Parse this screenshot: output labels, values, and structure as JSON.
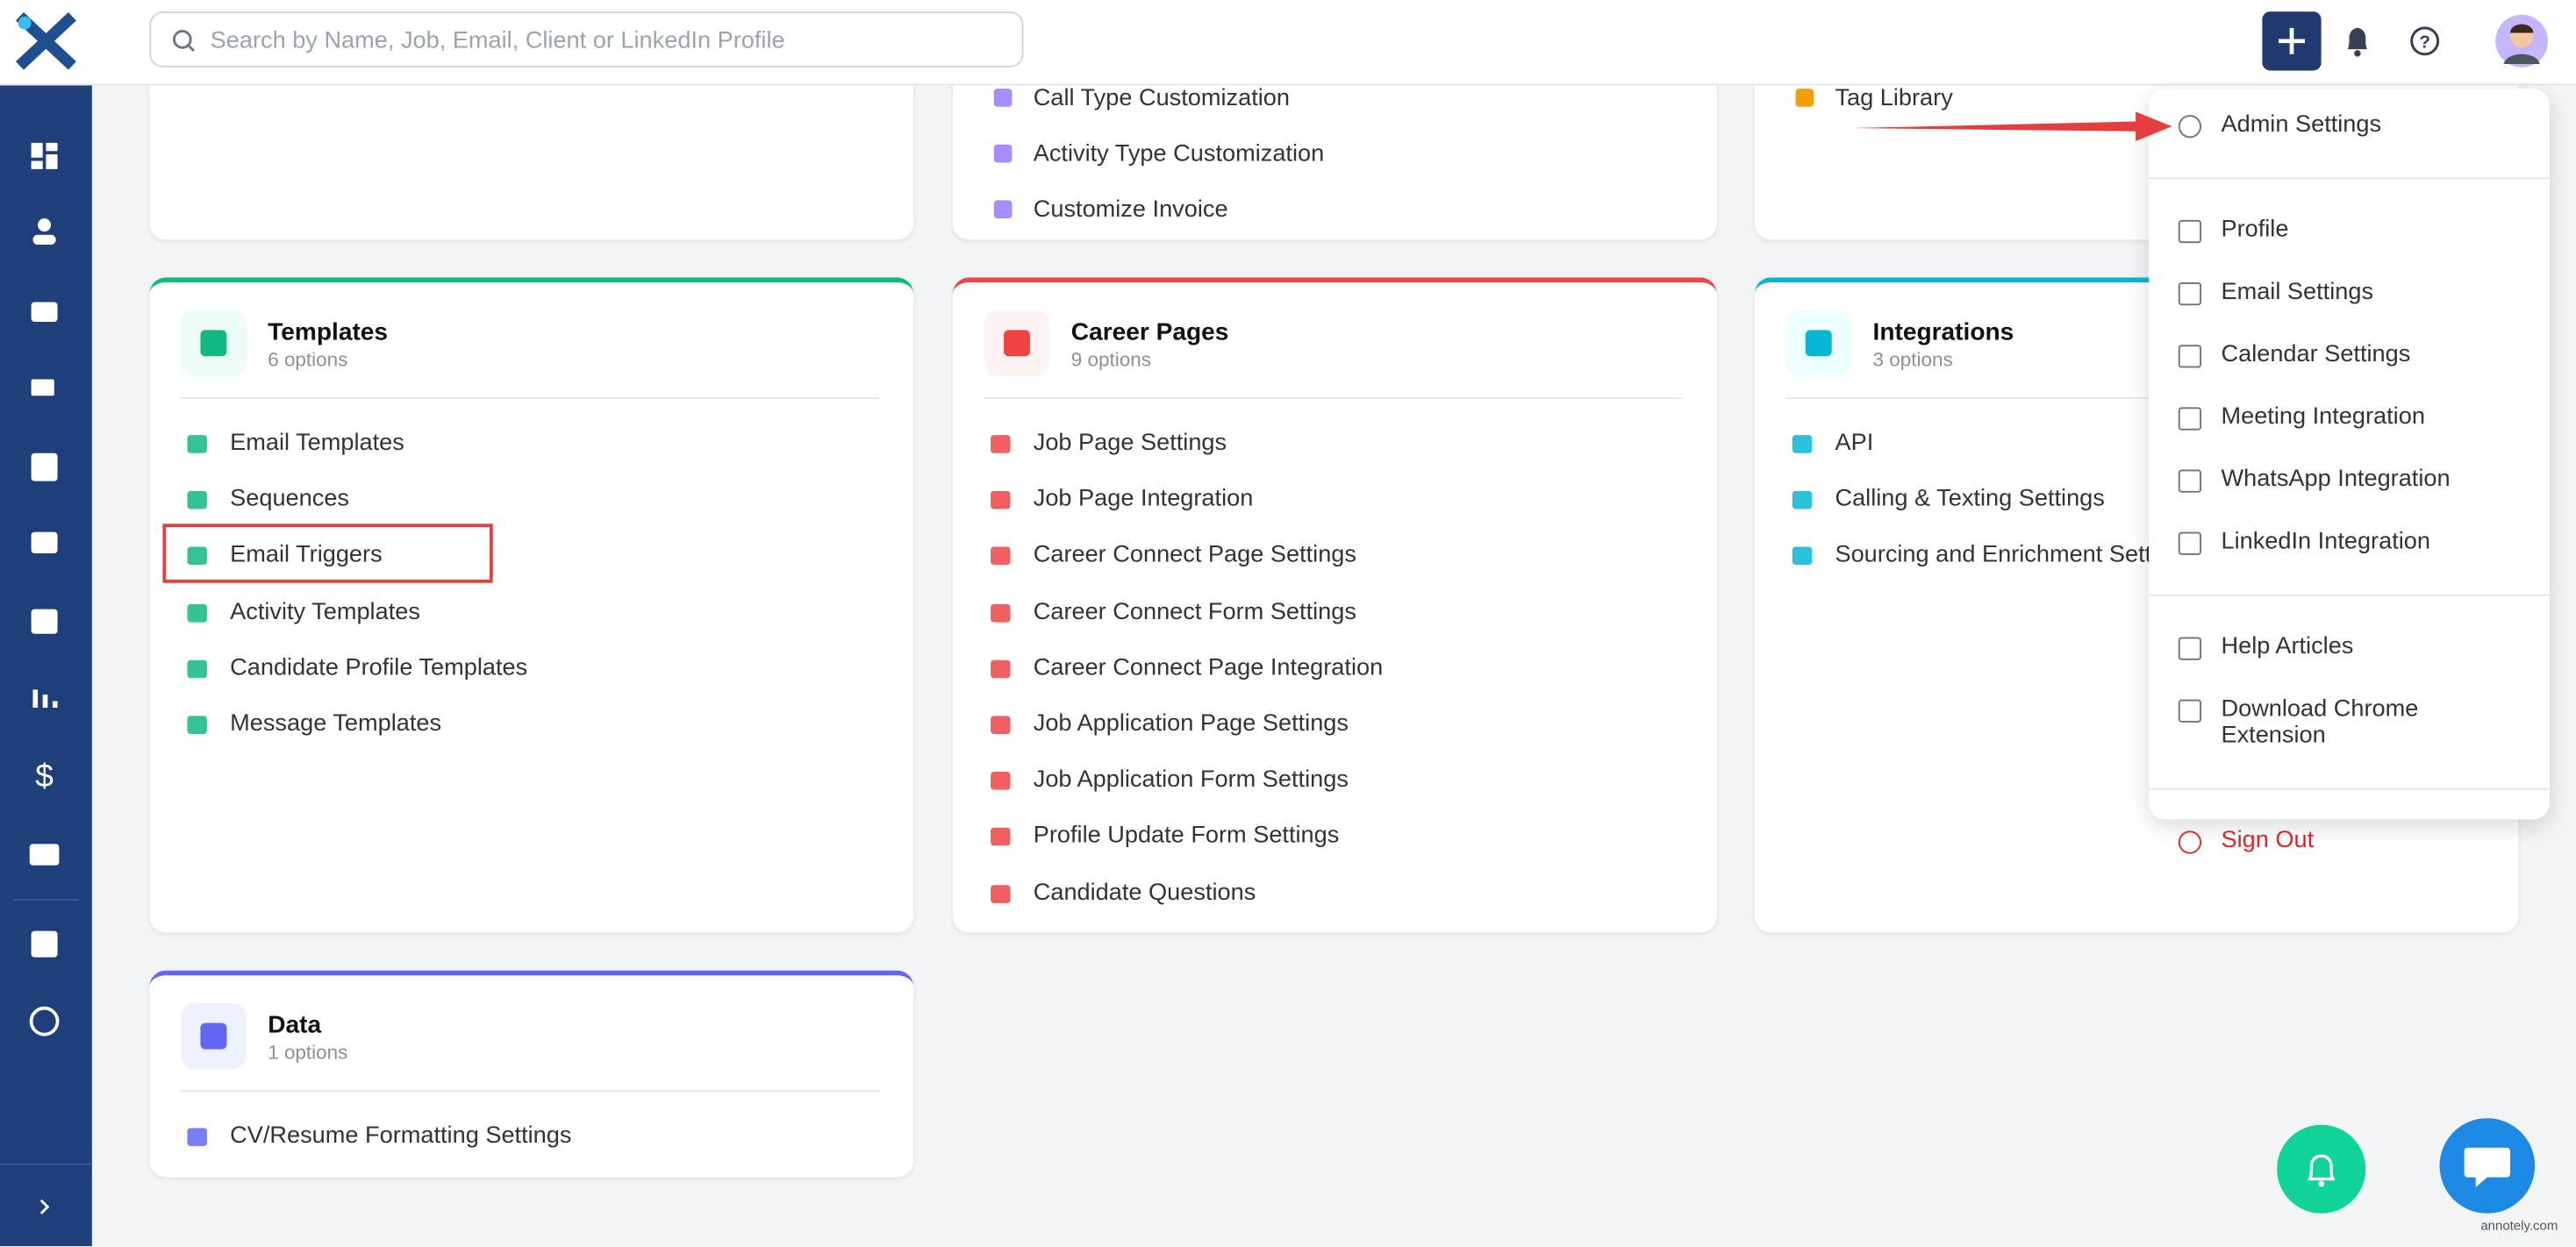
{
  "search": {
    "placeholder": "Search by Name, Job, Email, Client or LinkedIn Profile"
  },
  "top_cards": [
    {
      "items": []
    },
    {
      "items": [
        "Call Type Customization",
        "Activity Type Customization",
        "Customize Invoice"
      ]
    },
    {
      "items": [
        "Tag Library"
      ]
    }
  ],
  "cards": [
    {
      "title": "Templates",
      "subtitle": "6 options",
      "items": [
        "Email Templates",
        "Sequences",
        "Email Triggers",
        "Activity Templates",
        "Candidate Profile Templates",
        "Message Templates"
      ]
    },
    {
      "title": "Career Pages",
      "subtitle": "9 options",
      "items": [
        "Job Page Settings",
        "Job Page Integration",
        "Career Connect Page Settings",
        "Career Connect Form Settings",
        "Career Connect Page Integration",
        "Job Application Page Settings",
        "Job Application Form Settings",
        "Profile Update Form Settings",
        "Candidate Questions"
      ]
    },
    {
      "title": "Integrations",
      "subtitle": "3 options",
      "items": [
        "API",
        "Calling & Texting Settings",
        "Sourcing and Enrichment Settings"
      ]
    },
    {
      "title": "Data",
      "subtitle": "1 options",
      "items": [
        "CV/Resume Formatting Settings"
      ]
    }
  ],
  "menu": {
    "groups": [
      [
        "Admin Settings"
      ],
      [
        "Profile",
        "Email Settings",
        "Calendar Settings",
        "Meeting Integration",
        "WhatsApp Integration",
        "LinkedIn Integration"
      ],
      [
        "Help Articles",
        "Download Chrome Extension"
      ],
      [
        "Sign Out"
      ]
    ]
  },
  "watermark": "annotely.com"
}
